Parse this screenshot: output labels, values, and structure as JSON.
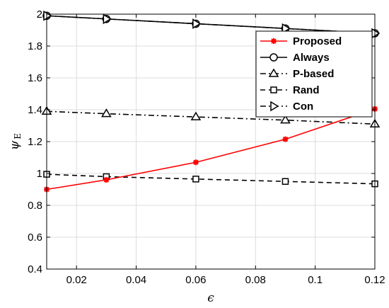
{
  "chart_data": {
    "type": "line",
    "xlabel": "ϵ",
    "ylabel": "ψ",
    "ylabel_sub": "E",
    "xlim": [
      0.01,
      0.12
    ],
    "ylim": [
      0.4,
      2.0
    ],
    "xticks": [
      0.02,
      0.04,
      0.06,
      0.08,
      0.1,
      0.12
    ],
    "xtick_labels": [
      "0.02",
      "0.04",
      "0.06",
      "0.08",
      "0.1",
      "0.12"
    ],
    "yticks": [
      0.4,
      0.6,
      0.8,
      1.0,
      1.2,
      1.4,
      1.6,
      1.8,
      2.0
    ],
    "ytick_labels": [
      "0.4",
      "0.6",
      "0.8",
      "1",
      "1.2",
      "1.4",
      "1.6",
      "1.8",
      "2"
    ],
    "grid": true,
    "legend_position": "top-right",
    "x": [
      0.01,
      0.03,
      0.06,
      0.09,
      0.12
    ],
    "series": [
      {
        "name": "Proposed",
        "values": [
          0.9,
          0.96,
          1.07,
          1.215,
          1.405
        ],
        "color": "#ff0000",
        "dash": "solid",
        "marker": "asterisk"
      },
      {
        "name": "Always",
        "values": [
          1.99,
          1.97,
          1.94,
          1.91,
          1.88
        ],
        "color": "#000000",
        "dash": "solid",
        "marker": "circle"
      },
      {
        "name": "P-based",
        "values": [
          1.39,
          1.375,
          1.355,
          1.335,
          1.31
        ],
        "color": "#000000",
        "dash": "dashdot",
        "marker": "triangle"
      },
      {
        "name": "Rand",
        "values": [
          0.995,
          0.98,
          0.965,
          0.95,
          0.935
        ],
        "color": "#000000",
        "dash": "dashed",
        "marker": "square"
      },
      {
        "name": "Con",
        "values": [
          1.99,
          1.97,
          1.94,
          1.91,
          1.88
        ],
        "color": "#000000",
        "dash": "dashdot",
        "marker": "triangle-right"
      }
    ]
  }
}
